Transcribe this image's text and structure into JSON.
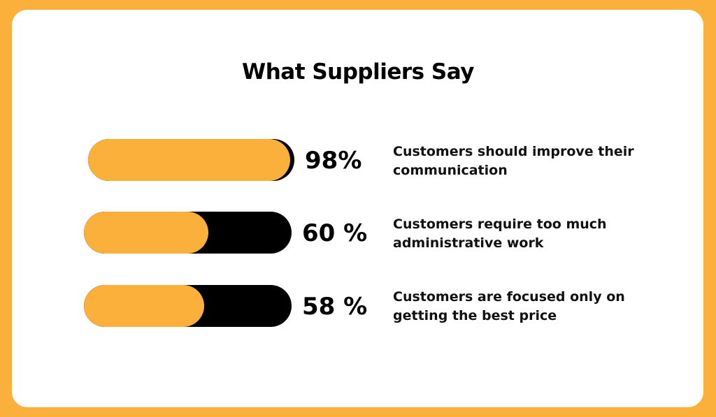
{
  "colors": {
    "page_background": "#FBB03B",
    "card_background": "#FFFFFF",
    "bar_fill": "#FBB03B",
    "bar_track": "#000000"
  },
  "chart_data": {
    "type": "bar",
    "orientation": "horizontal",
    "title": "What Suppliers Say",
    "categories": [
      "Customers should improve their communication",
      "Customers require too much administrative work",
      "Customers are focused only on getting the best price"
    ],
    "values": [
      98,
      60,
      58
    ],
    "value_labels": [
      "98%",
      "60 %",
      "58 %"
    ],
    "xlim": [
      0,
      100
    ],
    "grid": false,
    "legend": "none"
  }
}
